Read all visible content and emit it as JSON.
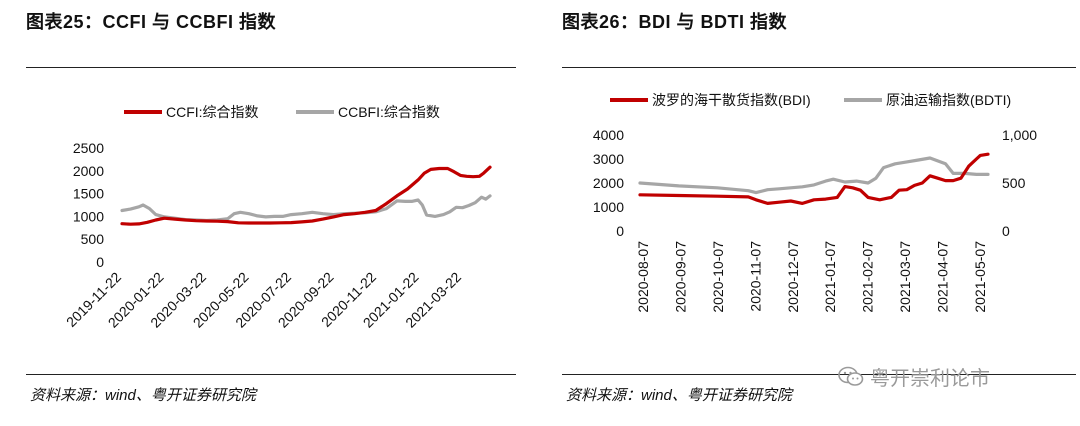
{
  "panels": {
    "left": {
      "title": "图表25：CCFI 与 CCBFI 指数",
      "source": "资料来源：wind、粤开证券研究院"
    },
    "right": {
      "title": "图表26：BDI 与 BDTI 指数",
      "source": "资料来源：wind、粤开证券研究院"
    }
  },
  "watermark": {
    "text": "粤开崇利论市",
    "icon": "wechat-icon"
  },
  "colors": {
    "red": "#c00000",
    "gray": "#a6a6a6"
  },
  "chart_data": [
    {
      "type": "line",
      "title": "图表25：CCFI 与 CCBFI 指数",
      "legend_position": "top-left",
      "x_tick_labels": [
        "2019-11-22",
        "2020-01-22",
        "2020-03-22",
        "2020-05-22",
        "2020-07-22",
        "2020-09-22",
        "2020-11-22",
        "2021-01-22",
        "2021-03-22"
      ],
      "ylim": [
        0,
        2500
      ],
      "yticks": [
        0,
        500,
        1000,
        1500,
        2000,
        2500
      ],
      "xlim": [
        0,
        17.4
      ],
      "series": [
        {
          "name": "CCFI:综合指数",
          "color": "#c00000",
          "points": [
            [
              0,
              840
            ],
            [
              0.4,
              830
            ],
            [
              0.8,
              835
            ],
            [
              1.2,
              870
            ],
            [
              1.6,
              920
            ],
            [
              2,
              960
            ],
            [
              2.5,
              940
            ],
            [
              3,
              920
            ],
            [
              3.5,
              905
            ],
            [
              4,
              900
            ],
            [
              4.5,
              895
            ],
            [
              5,
              885
            ],
            [
              5.5,
              860
            ],
            [
              6,
              855
            ],
            [
              6.5,
              855
            ],
            [
              7,
              855
            ],
            [
              7.5,
              860
            ],
            [
              8,
              865
            ],
            [
              8.5,
              880
            ],
            [
              9,
              900
            ],
            [
              9.5,
              940
            ],
            [
              10,
              990
            ],
            [
              10.5,
              1040
            ],
            [
              11,
              1060
            ],
            [
              11.5,
              1090
            ],
            [
              12,
              1130
            ],
            [
              12.5,
              1280
            ],
            [
              13,
              1450
            ],
            [
              13.5,
              1600
            ],
            [
              14,
              1800
            ],
            [
              14.3,
              1950
            ],
            [
              14.6,
              2030
            ],
            [
              15,
              2050
            ],
            [
              15.4,
              2050
            ],
            [
              15.7,
              1980
            ],
            [
              16,
              1900
            ],
            [
              16.3,
              1880
            ],
            [
              16.6,
              1870
            ],
            [
              16.9,
              1880
            ],
            [
              17.1,
              1950
            ],
            [
              17.4,
              2080
            ]
          ]
        },
        {
          "name": "CCBFI:综合指数",
          "color": "#a6a6a6",
          "points": [
            [
              0,
              1130
            ],
            [
              0.4,
              1160
            ],
            [
              0.8,
              1210
            ],
            [
              1,
              1250
            ],
            [
              1.3,
              1170
            ],
            [
              1.6,
              1040
            ],
            [
              2,
              990
            ],
            [
              2.5,
              960
            ],
            [
              3,
              930
            ],
            [
              3.5,
              920
            ],
            [
              4,
              910
            ],
            [
              4.5,
              920
            ],
            [
              5,
              950
            ],
            [
              5.3,
              1060
            ],
            [
              5.6,
              1090
            ],
            [
              6,
              1060
            ],
            [
              6.4,
              1010
            ],
            [
              6.8,
              990
            ],
            [
              7.2,
              1000
            ],
            [
              7.6,
              1000
            ],
            [
              8,
              1040
            ],
            [
              8.5,
              1060
            ],
            [
              9,
              1090
            ],
            [
              9.5,
              1060
            ],
            [
              10,
              1040
            ],
            [
              10.5,
              1060
            ],
            [
              11,
              1070
            ],
            [
              11.5,
              1080
            ],
            [
              12,
              1100
            ],
            [
              12.5,
              1170
            ],
            [
              13,
              1340
            ],
            [
              13.4,
              1330
            ],
            [
              13.7,
              1330
            ],
            [
              14,
              1360
            ],
            [
              14.2,
              1250
            ],
            [
              14.4,
              1030
            ],
            [
              14.8,
              1000
            ],
            [
              15.2,
              1040
            ],
            [
              15.5,
              1100
            ],
            [
              15.8,
              1200
            ],
            [
              16.1,
              1190
            ],
            [
              16.4,
              1240
            ],
            [
              16.7,
              1300
            ],
            [
              17,
              1420
            ],
            [
              17.2,
              1380
            ],
            [
              17.4,
              1450
            ]
          ]
        }
      ]
    },
    {
      "type": "line",
      "title": "图表26：BDI 与 BDTI 指数",
      "legend_position": "top",
      "x_tick_labels": [
        "2020-08-07",
        "2020-09-07",
        "2020-10-07",
        "2020-11-07",
        "2020-12-07",
        "2021-01-07",
        "2021-02-07",
        "2021-03-07",
        "2021-04-07",
        "2021-05-07"
      ],
      "ylim": [
        0,
        4000
      ],
      "yticks": [
        0,
        1000,
        2000,
        3000,
        4000
      ],
      "y2lim": [
        0,
        1000
      ],
      "y2ticks": [
        0,
        500,
        1000
      ],
      "y2tick_labels": [
        "0",
        "500",
        "1,000"
      ],
      "xlim": [
        0,
        9.0
      ],
      "series": [
        {
          "name": "波罗的海干散货指数(BDI)",
          "axis": "left",
          "color": "#c00000",
          "points": [
            [
              0,
              1510
            ],
            [
              1,
              1480
            ],
            [
              2,
              1450
            ],
            [
              2.8,
              1420
            ],
            [
              3.0,
              1300
            ],
            [
              3.3,
              1150
            ],
            [
              3.6,
              1200
            ],
            [
              3.9,
              1250
            ],
            [
              4.2,
              1150
            ],
            [
              4.5,
              1300
            ],
            [
              4.8,
              1330
            ],
            [
              5.1,
              1400
            ],
            [
              5.3,
              1850
            ],
            [
              5.5,
              1800
            ],
            [
              5.7,
              1700
            ],
            [
              5.9,
              1400
            ],
            [
              6.2,
              1300
            ],
            [
              6.5,
              1400
            ],
            [
              6.7,
              1700
            ],
            [
              6.9,
              1720
            ],
            [
              7.1,
              1900
            ],
            [
              7.3,
              2000
            ],
            [
              7.5,
              2300
            ],
            [
              7.7,
              2200
            ],
            [
              7.9,
              2100
            ],
            [
              8.1,
              2100
            ],
            [
              8.3,
              2200
            ],
            [
              8.5,
              2700
            ],
            [
              8.7,
              3000
            ],
            [
              8.8,
              3150
            ],
            [
              9.0,
              3200
            ]
          ]
        },
        {
          "name": "原油运输指数(BDTI)",
          "axis": "right",
          "color": "#a6a6a6",
          "points": [
            [
              0,
              500
            ],
            [
              1,
              470
            ],
            [
              2,
              450
            ],
            [
              2.8,
              420
            ],
            [
              3.0,
              400
            ],
            [
              3.3,
              430
            ],
            [
              3.6,
              440
            ],
            [
              3.9,
              450
            ],
            [
              4.2,
              460
            ],
            [
              4.5,
              480
            ],
            [
              4.8,
              520
            ],
            [
              5.0,
              540
            ],
            [
              5.3,
              510
            ],
            [
              5.6,
              520
            ],
            [
              5.9,
              500
            ],
            [
              6.1,
              550
            ],
            [
              6.3,
              660
            ],
            [
              6.6,
              700
            ],
            [
              6.9,
              720
            ],
            [
              7.2,
              740
            ],
            [
              7.5,
              760
            ],
            [
              7.7,
              730
            ],
            [
              7.9,
              700
            ],
            [
              8.1,
              600
            ],
            [
              8.4,
              600
            ],
            [
              8.7,
              590
            ],
            [
              9.0,
              590
            ]
          ]
        }
      ]
    }
  ]
}
